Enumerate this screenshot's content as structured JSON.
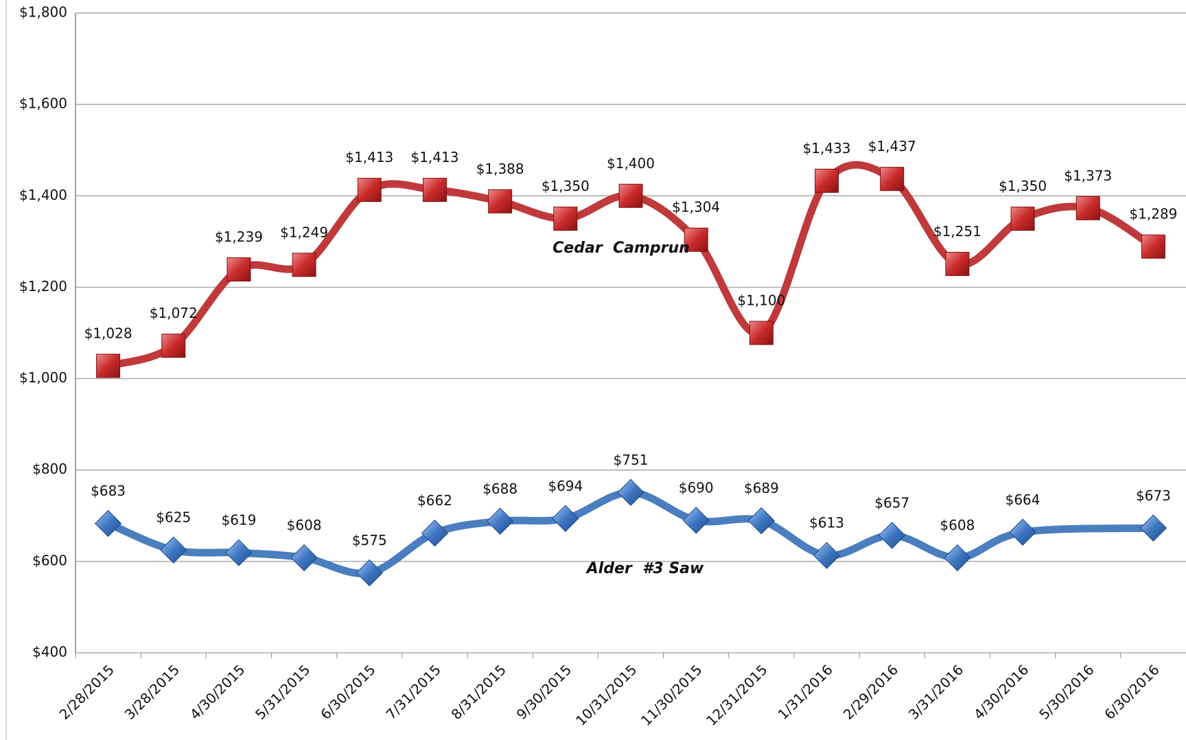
{
  "chart_data": {
    "type": "line",
    "categories": [
      "2/28/2015",
      "3/28/2015",
      "4/30/2015",
      "5/31/2015",
      "6/30/2015",
      "7/31/2015",
      "8/31/2015",
      "9/30/2015",
      "10/31/2015",
      "11/30/2015",
      "12/31/2015",
      "1/31/2016",
      "2/29/2016",
      "3/31/2016",
      "4/30/2016",
      "5/30/2016",
      "6/30/2016"
    ],
    "series": [
      {
        "name": "Cedar  Camprun",
        "color": "#c0393b",
        "values": [
          1028,
          1072,
          1239,
          1249,
          1413,
          1413,
          1388,
          1350,
          1400,
          1304,
          1100,
          1433,
          1437,
          1251,
          1350,
          1373,
          1289
        ],
        "value_labels": [
          "$1,028",
          "$1,072",
          "$1,239",
          "$1,249",
          "$1,413",
          "$1,413",
          "$1,388",
          "$1,350",
          "$1,400",
          "$1,304",
          "$1,100",
          "$1,433",
          "$1,437",
          "$1,251",
          "$1,350",
          "$1,373",
          "$1,289"
        ]
      },
      {
        "name": "Alder  #3 Saw",
        "color": "#4a7ebf",
        "values": [
          683,
          625,
          619,
          608,
          575,
          662,
          688,
          694,
          751,
          690,
          689,
          613,
          657,
          608,
          664,
          null,
          673
        ],
        "value_labels": [
          "$683",
          "$625",
          "$619",
          "$608",
          "$575",
          "$662",
          "$688",
          "$694",
          "$751",
          "$690",
          "$689",
          "$613",
          "$657",
          "$608",
          "$664",
          null,
          "$673"
        ]
      }
    ],
    "ylim": [
      400,
      1800
    ],
    "yticks": [
      {
        "value": 400,
        "label": "$400"
      },
      {
        "value": 600,
        "label": "$600"
      },
      {
        "value": 800,
        "label": "$800"
      },
      {
        "value": 1000,
        "label": "$1,000"
      },
      {
        "value": 1200,
        "label": "$1,200"
      },
      {
        "value": 1400,
        "label": "$1,400"
      },
      {
        "value": 1600,
        "label": "$1,600"
      },
      {
        "value": 1800,
        "label": "$1,800"
      }
    ],
    "grid": true
  }
}
